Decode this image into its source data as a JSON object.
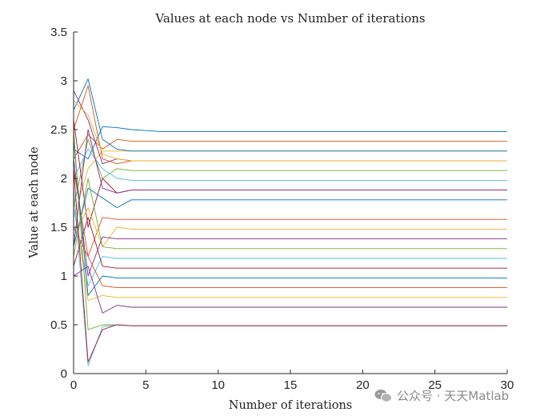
{
  "chart_data": {
    "type": "line",
    "title": "Values at each node vs Number of iterations",
    "xlabel": "Number of iterations",
    "ylabel": "Value at each node",
    "xlim": [
      0,
      30
    ],
    "ylim": [
      0,
      3.5
    ],
    "xticks": [
      0,
      5,
      10,
      15,
      20,
      25,
      30
    ],
    "yticks": [
      0,
      0.5,
      1,
      1.5,
      2,
      2.5,
      3,
      3.5
    ],
    "grid": false,
    "legend": "none",
    "series_colors": [
      "#0072BD",
      "#D95319",
      "#EDB120",
      "#7E2F8E",
      "#77AC30",
      "#4DBEEE",
      "#A2142F"
    ],
    "series": [
      {
        "values": [
          2.3,
          2.2,
          2.53,
          2.52,
          2.5,
          2.49,
          2.48,
          2.48,
          2.48,
          2.48
        ]
      },
      {
        "values": [
          2.2,
          2.45,
          2.3,
          2.4,
          2.38,
          2.38,
          2.38
        ]
      },
      {
        "values": [
          1.6,
          2.1,
          2.28,
          2.28,
          2.28,
          2.28,
          2.28
        ]
      },
      {
        "values": [
          2.9,
          2.6,
          2.15,
          2.2,
          2.18,
          2.18,
          2.18
        ]
      },
      {
        "values": [
          1.7,
          2.4,
          2.0,
          2.1,
          2.08,
          2.08,
          2.08
        ]
      },
      {
        "values": [
          2.0,
          2.3,
          2.1,
          2.0,
          1.98,
          1.98,
          1.98
        ]
      },
      {
        "values": [
          2.6,
          1.5,
          2.0,
          1.85,
          1.88,
          1.88,
          1.88
        ]
      },
      {
        "values": [
          1.3,
          1.9,
          1.8,
          1.7,
          1.78,
          1.78,
          1.78
        ]
      },
      {
        "values": [
          2.1,
          1.2,
          1.6,
          1.58,
          1.58,
          1.58,
          1.58
        ]
      },
      {
        "values": [
          1.4,
          1.7,
          1.3,
          1.5,
          1.48,
          1.48,
          1.48
        ]
      },
      {
        "values": [
          2.2,
          1.0,
          1.4,
          1.38,
          1.38,
          1.38,
          1.38
        ]
      },
      {
        "values": [
          1.2,
          2.0,
          1.3,
          1.28,
          1.28,
          1.28,
          1.28
        ]
      },
      {
        "values": [
          1.7,
          0.9,
          1.2,
          1.18,
          1.18,
          1.18,
          1.18
        ]
      },
      {
        "values": [
          1.1,
          1.6,
          1.1,
          1.08,
          1.08,
          1.08,
          1.08
        ]
      },
      {
        "values": [
          2.4,
          0.8,
          1.0,
          0.98,
          0.98,
          0.98,
          0.98
        ]
      },
      {
        "values": [
          1.5,
          1.2,
          0.9,
          0.88,
          0.88,
          0.88,
          0.88
        ]
      },
      {
        "values": [
          1.8,
          0.75,
          0.8,
          0.78,
          0.78,
          0.78,
          0.78
        ]
      },
      {
        "values": [
          1.0,
          1.1,
          0.62,
          0.7,
          0.68,
          0.68,
          0.68
        ]
      },
      {
        "values": [
          2.5,
          0.45,
          0.5,
          0.5,
          0.49,
          0.49,
          0.49
        ]
      },
      {
        "values": [
          1.9,
          0.08,
          0.48,
          0.5,
          0.49,
          0.49,
          0.49
        ]
      },
      {
        "values": [
          2.1,
          0.12,
          0.45,
          0.5,
          0.49,
          0.49,
          0.49
        ]
      },
      {
        "values": [
          2.7,
          3.02,
          2.4,
          2.3,
          2.28,
          2.28,
          2.28
        ]
      },
      {
        "values": [
          2.5,
          2.95,
          2.2,
          2.15,
          2.18,
          2.18,
          2.18
        ]
      },
      {
        "values": [
          2.8,
          2.65,
          2.25,
          2.2,
          2.18,
          2.18,
          2.18
        ]
      },
      {
        "values": [
          1.3,
          2.5,
          1.9,
          1.85,
          1.88,
          1.88,
          1.88
        ]
      }
    ]
  },
  "watermark": {
    "text": "公众号 · 天天Matlab"
  }
}
